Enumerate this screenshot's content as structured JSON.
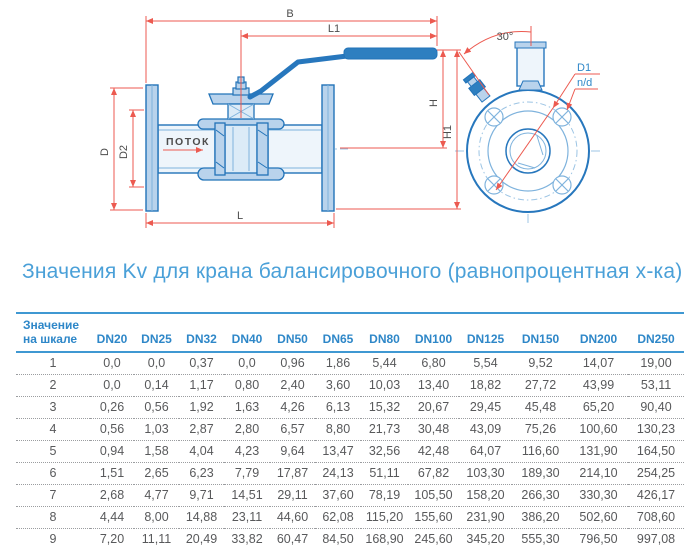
{
  "title": "Значения Kv для крана балансировочного (равнопроцентная х-ка)",
  "drawing": {
    "dim_B": "B",
    "dim_L1": "L1",
    "dim_H": "H",
    "dim_H1": "H1",
    "dim_L": "L",
    "dim_D": "D",
    "dim_D2": "D2",
    "dim_D1": "D1",
    "dim_nd": "n/d",
    "dim_angle": "30°",
    "flow_label": "ПОТОК",
    "colors": {
      "outline_blue": "#2273b8",
      "fill_blue": "#b9d3ec",
      "fill_light": "#eef5fb",
      "detail_blue": "#7fb3dd",
      "center_blue": "#9cc4e4",
      "dim_red": "#ec5a50",
      "label_gray": "#4d4d4d"
    }
  },
  "table": {
    "row_header_line1": "Значение",
    "row_header_line2": "на шкале",
    "columns": [
      "DN20",
      "DN25",
      "DN32",
      "DN40",
      "DN50",
      "DN65",
      "DN80",
      "DN100",
      "DN125",
      "DN150",
      "DN200",
      "DN250"
    ],
    "rows": [
      {
        "scale": "1",
        "values": [
          "0,0",
          "0,0",
          "0,37",
          "0,0",
          "0,96",
          "1,86",
          "5,44",
          "6,80",
          "5,54",
          "9,52",
          "14,07",
          "19,00"
        ]
      },
      {
        "scale": "2",
        "values": [
          "0,0",
          "0,14",
          "1,17",
          "0,80",
          "2,40",
          "3,60",
          "10,03",
          "13,40",
          "18,82",
          "27,72",
          "43,99",
          "53,11"
        ]
      },
      {
        "scale": "3",
        "values": [
          "0,26",
          "0,56",
          "1,92",
          "1,63",
          "4,26",
          "6,13",
          "15,32",
          "20,67",
          "29,45",
          "45,48",
          "65,20",
          "90,40"
        ]
      },
      {
        "scale": "4",
        "values": [
          "0,56",
          "1,03",
          "2,87",
          "2,80",
          "6,57",
          "8,80",
          "21,73",
          "30,48",
          "43,09",
          "75,26",
          "100,60",
          "130,23"
        ]
      },
      {
        "scale": "5",
        "values": [
          "0,94",
          "1,58",
          "4,04",
          "4,23",
          "9,64",
          "13,47",
          "32,56",
          "42,48",
          "64,07",
          "116,60",
          "131,90",
          "164,50"
        ]
      },
      {
        "scale": "6",
        "values": [
          "1,51",
          "2,65",
          "6,23",
          "7,79",
          "17,87",
          "24,13",
          "51,11",
          "67,82",
          "103,30",
          "189,30",
          "214,10",
          "254,25"
        ]
      },
      {
        "scale": "7",
        "values": [
          "2,68",
          "4,77",
          "9,71",
          "14,51",
          "29,11",
          "37,60",
          "78,19",
          "105,50",
          "158,20",
          "266,30",
          "330,30",
          "426,17"
        ]
      },
      {
        "scale": "8",
        "values": [
          "4,44",
          "8,00",
          "14,88",
          "23,11",
          "44,60",
          "62,08",
          "115,20",
          "155,60",
          "231,90",
          "386,20",
          "502,60",
          "708,60"
        ]
      },
      {
        "scale": "9",
        "values": [
          "7,20",
          "11,11",
          "20,49",
          "33,82",
          "60,47",
          "84,50",
          "168,90",
          "245,60",
          "345,20",
          "555,30",
          "796,50",
          "997,08"
        ]
      }
    ]
  }
}
